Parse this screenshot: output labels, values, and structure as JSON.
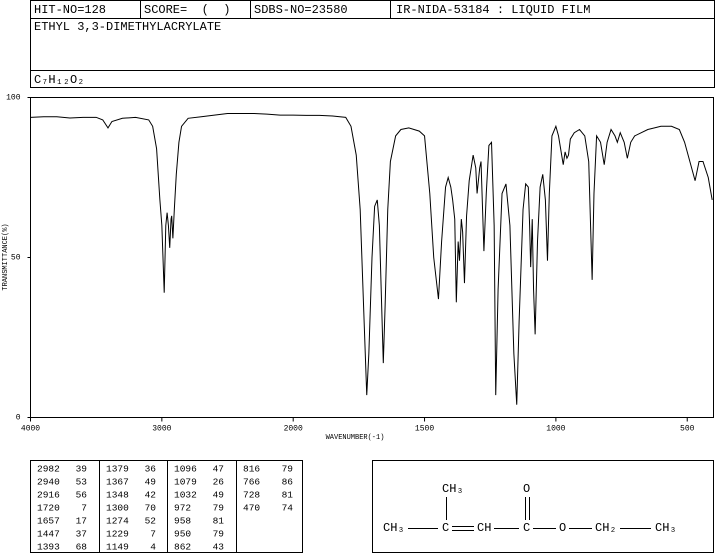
{
  "header": {
    "hit_no": "HIT-NO=128",
    "score": "SCORE=  (  )",
    "sdbs_no": "SDBS-NO=23580",
    "ir_code": "IR-NIDA-53184 : LIQUID FILM",
    "name": "ETHYL 3,3-DIMETHYLACRYLATE",
    "formula": "C₇H₁₂O₂"
  },
  "chart_data": {
    "type": "line",
    "xlabel": "WAVENUMBER(-1)",
    "ylabel": "TRANSMITTANCE(%)",
    "color": "#000000",
    "grid": false,
    "xlim": [
      4000,
      400
    ],
    "ylim": [
      0,
      100
    ],
    "xticks": [
      4000,
      3000,
      2000,
      1500,
      1000,
      500
    ],
    "yticks": [
      0,
      50,
      100
    ],
    "x": [
      4000,
      3900,
      3800,
      3700,
      3600,
      3500,
      3450,
      3410,
      3380,
      3300,
      3200,
      3100,
      3070,
      3040,
      3015,
      3000,
      2982,
      2970,
      2960,
      2950,
      2940,
      2930,
      2925,
      2916,
      2905,
      2890,
      2870,
      2850,
      2800,
      2700,
      2600,
      2500,
      2400,
      2300,
      2200,
      2100,
      2000,
      1950,
      1900,
      1850,
      1800,
      1780,
      1760,
      1745,
      1730,
      1720,
      1712,
      1700,
      1690,
      1680,
      1672,
      1665,
      1657,
      1650,
      1640,
      1630,
      1610,
      1590,
      1560,
      1520,
      1500,
      1480,
      1465,
      1447,
      1435,
      1420,
      1410,
      1400,
      1393,
      1385,
      1379,
      1372,
      1367,
      1360,
      1355,
      1348,
      1340,
      1330,
      1315,
      1305,
      1300,
      1290,
      1285,
      1274,
      1265,
      1255,
      1245,
      1235,
      1229,
      1220,
      1205,
      1190,
      1175,
      1160,
      1149,
      1140,
      1125,
      1115,
      1105,
      1100,
      1096,
      1090,
      1085,
      1079,
      1070,
      1060,
      1050,
      1040,
      1032,
      1025,
      1015,
      1000,
      990,
      972,
      965,
      958,
      952,
      945,
      930,
      910,
      890,
      875,
      862,
      855,
      845,
      830,
      816,
      805,
      790,
      775,
      766,
      755,
      740,
      728,
      715,
      700,
      650,
      600,
      560,
      530,
      510,
      490,
      470,
      455,
      440,
      420,
      405
    ],
    "values": [
      93.8,
      94,
      94,
      93.6,
      93.8,
      93.8,
      93,
      90.5,
      92.5,
      93.5,
      93.8,
      93,
      91,
      84,
      68,
      60,
      39,
      60,
      64,
      60,
      53,
      62,
      63,
      56,
      65,
      76,
      86,
      91,
      93.5,
      94,
      94.5,
      95,
      95,
      95,
      94.8,
      94.5,
      94.5,
      94.4,
      94.4,
      94.2,
      93.8,
      91,
      82,
      65,
      30,
      7,
      20,
      50,
      66,
      68,
      60,
      40,
      17,
      35,
      65,
      80,
      88,
      90,
      90.5,
      89.5,
      88,
      70,
      50,
      37,
      55,
      72,
      75,
      72,
      68,
      62,
      36,
      55,
      49,
      62,
      58,
      42,
      63,
      74,
      82,
      78,
      70,
      78,
      80,
      52,
      70,
      85,
      86,
      60,
      7,
      40,
      70,
      73,
      60,
      20,
      4,
      30,
      65,
      73,
      72,
      60,
      47,
      62,
      40,
      26,
      55,
      72,
      76,
      68,
      49,
      70,
      88,
      91,
      88,
      79,
      83,
      81,
      82,
      87,
      89,
      90,
      88,
      80,
      43,
      70,
      88,
      86,
      79,
      86,
      90,
      88,
      86,
      89,
      86,
      81,
      86,
      88,
      90,
      91,
      91,
      90,
      86,
      80,
      74,
      80,
      80,
      75,
      68
    ]
  },
  "peak_table": [
    [
      [
        "2982",
        "39"
      ],
      [
        "2940",
        "53"
      ],
      [
        "2916",
        "56"
      ],
      [
        "1720",
        "7"
      ],
      [
        "1657",
        "17"
      ],
      [
        "1447",
        "37"
      ],
      [
        "1393",
        "68"
      ]
    ],
    [
      [
        "1379",
        "36"
      ],
      [
        "1367",
        "49"
      ],
      [
        "1348",
        "42"
      ],
      [
        "1300",
        "70"
      ],
      [
        "1274",
        "52"
      ],
      [
        "1229",
        "7"
      ],
      [
        "1149",
        "4"
      ]
    ],
    [
      [
        "1096",
        "47"
      ],
      [
        "1079",
        "26"
      ],
      [
        "1032",
        "49"
      ],
      [
        "972",
        "79"
      ],
      [
        "958",
        "81"
      ],
      [
        "950",
        "79"
      ],
      [
        "862",
        "43"
      ]
    ],
    [
      [
        "816",
        "79"
      ],
      [
        "766",
        "86"
      ],
      [
        "728",
        "81"
      ],
      [
        "470",
        "74"
      ]
    ]
  ],
  "structure": {
    "atoms": [
      "CH₃",
      "C",
      "CH",
      "C",
      "O",
      "CH₂",
      "CH₃",
      "CH₃",
      "O"
    ]
  }
}
